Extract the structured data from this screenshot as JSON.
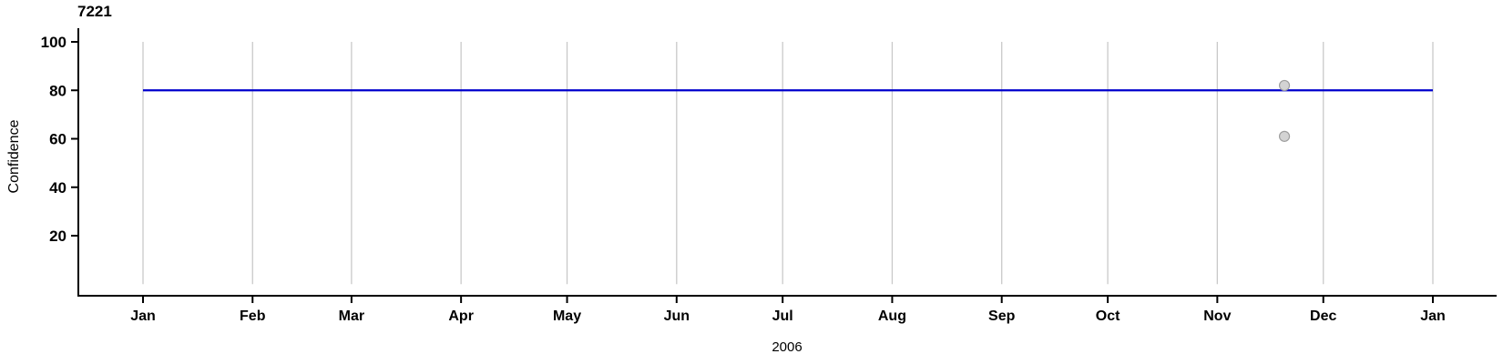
{
  "chart_data": {
    "type": "scatter",
    "title": "7221",
    "xlabel": "2006",
    "ylabel": "Confidence",
    "x_axis": {
      "unit": "month",
      "tick_labels": [
        "Jan",
        "Feb",
        "Mar",
        "Apr",
        "May",
        "Jun",
        "Jul",
        "Aug",
        "Sep",
        "Oct",
        "Nov",
        "Dec",
        "Jan"
      ],
      "tick_day_of_year": [
        0,
        31,
        59,
        90,
        120,
        151,
        181,
        212,
        243,
        273,
        304,
        334,
        365
      ],
      "range_days": [
        0,
        365
      ],
      "year": "2006"
    },
    "y_axis": {
      "tick_values": [
        100,
        80,
        60,
        40,
        20
      ],
      "ylim": [
        -5,
        105
      ]
    },
    "grid": {
      "vertical_month_lines": true,
      "span_values": [
        0,
        100
      ]
    },
    "reference_line": {
      "value": 80,
      "start_day": 0,
      "end_day": 365
    },
    "points": [
      {
        "day_of_year": 323,
        "date_est": "2006-11-20",
        "value": 82
      },
      {
        "day_of_year": 323,
        "date_est": "2006-11-20",
        "value": 61
      }
    ],
    "colors": {
      "reference_line": "#0000CD",
      "grid_line": "#C9C9C9",
      "axis": "#000000",
      "point_fill": "#D3D3D3",
      "point_stroke": "#9E9E9E"
    }
  }
}
